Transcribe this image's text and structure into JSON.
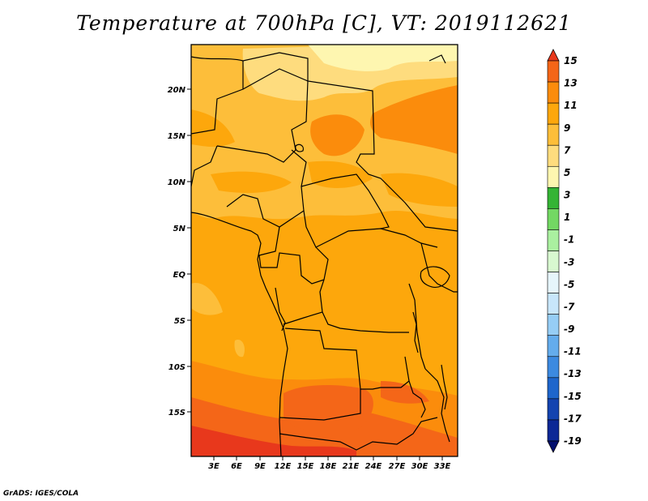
{
  "title": "Temperature at 700hPa [C], VT: 2019112621",
  "credit": "GrADS: IGES/COLA",
  "map": {
    "lat_labels": [
      "20N",
      "15N",
      "10N",
      "5N",
      "EQ",
      "5S",
      "10S",
      "15S"
    ],
    "lon_labels": [
      "3E",
      "6E",
      "9E",
      "12E",
      "15E",
      "18E",
      "21E",
      "24E",
      "27E",
      "30E",
      "33E"
    ],
    "lon_range": [
      0,
      35
    ],
    "lat_range": [
      -20,
      24
    ],
    "variable": "Temperature at 700hPa",
    "units": "C",
    "valid_time": "2019112621"
  },
  "colorbar": {
    "labels": [
      "15",
      "13",
      "11",
      "9",
      "7",
      "5",
      "3",
      "1",
      "-1",
      "-3",
      "-5",
      "-7",
      "-9",
      "-11",
      "-13",
      "-15",
      "-17",
      "-19"
    ],
    "colors": [
      "#e8381c",
      "#f46618",
      "#fb8c0c",
      "#fda70c",
      "#fdbe3a",
      "#fedc7e",
      "#fef6b0",
      "#35b435",
      "#73d863",
      "#aaf0a0",
      "#d8f8d0",
      "#e6f5fb",
      "#c8e6fa",
      "#96cdf5",
      "#64acec",
      "#3c8ae0",
      "#1e66cc",
      "#1444b0",
      "#0c2896",
      "#030f6e"
    ]
  }
}
